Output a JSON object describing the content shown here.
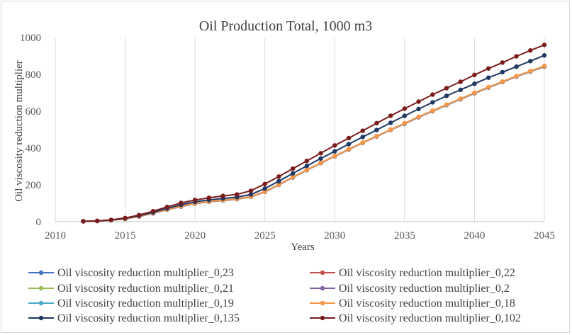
{
  "chart_data": {
    "type": "line",
    "title": "Oil Production Total, 1000 m3",
    "xlabel": "Years",
    "ylabel": "Oil viscosity reduction multiplier",
    "xlim": [
      2010,
      2045
    ],
    "ylim": [
      0,
      1000
    ],
    "xticks": [
      2010,
      2015,
      2020,
      2025,
      2030,
      2035,
      2040,
      2045
    ],
    "yticks": [
      0,
      200,
      400,
      600,
      800,
      1000
    ],
    "grid": "vertical",
    "legend_position": "bottom",
    "x": [
      2012,
      2013,
      2014,
      2015,
      2016,
      2017,
      2018,
      2019,
      2020,
      2021,
      2022,
      2023,
      2024,
      2025,
      2026,
      2027,
      2028,
      2029,
      2030,
      2031,
      2032,
      2033,
      2034,
      2035,
      2036,
      2037,
      2038,
      2039,
      2040,
      2041,
      2042,
      2043,
      2044,
      2045
    ],
    "series": [
      {
        "name": "Oil viscosity reduction multiplier_0,23",
        "color": "#4472c4",
        "values": [
          2,
          4,
          8,
          15,
          28,
          45,
          65,
          82,
          98,
          108,
          115,
          122,
          135,
          162,
          200,
          240,
          280,
          318,
          355,
          392,
          428,
          463,
          498,
          532,
          567,
          600,
          633,
          665,
          697,
          728,
          758,
          788,
          815,
          843
        ]
      },
      {
        "name": "Oil viscosity reduction multiplier_0,22",
        "color": "#c0504d",
        "values": [
          2,
          4,
          8,
          15,
          28,
          45,
          65,
          82,
          98,
          108,
          115,
          122,
          135,
          162,
          200,
          240,
          280,
          318,
          355,
          392,
          428,
          463,
          498,
          532,
          567,
          600,
          633,
          665,
          697,
          728,
          758,
          788,
          815,
          842
        ]
      },
      {
        "name": "Oil viscosity reduction multiplier_0,21",
        "color": "#9bbb59",
        "values": [
          2,
          4,
          8,
          16,
          29,
          46,
          66,
          83,
          99,
          109,
          116,
          123,
          136,
          163,
          201,
          241,
          281,
          319,
          356,
          393,
          429,
          464,
          499,
          533,
          568,
          601,
          634,
          666,
          698,
          729,
          759,
          789,
          816,
          844
        ]
      },
      {
        "name": "Oil viscosity reduction multiplier_0,2",
        "color": "#8064a2",
        "values": [
          2,
          4,
          8,
          16,
          29,
          46,
          66,
          83,
          99,
          109,
          116,
          123,
          136,
          163,
          201,
          241,
          281,
          319,
          356,
          393,
          429,
          464,
          499,
          533,
          568,
          601,
          634,
          666,
          698,
          729,
          759,
          789,
          816,
          844
        ]
      },
      {
        "name": "Oil viscosity reduction multiplier_0,19",
        "color": "#4bacc6",
        "values": [
          2,
          4,
          8,
          16,
          29,
          46,
          66,
          84,
          100,
          110,
          117,
          124,
          137,
          164,
          202,
          242,
          282,
          320,
          357,
          394,
          430,
          465,
          500,
          534,
          569,
          602,
          635,
          667,
          699,
          730,
          760,
          790,
          817,
          845
        ]
      },
      {
        "name": "Oil viscosity reduction multiplier_0,18",
        "color": "#f79646",
        "values": [
          2,
          4,
          8,
          16,
          29,
          47,
          67,
          84,
          100,
          110,
          117,
          124,
          137,
          164,
          202,
          242,
          282,
          320,
          357,
          394,
          430,
          465,
          500,
          535,
          570,
          603,
          636,
          668,
          700,
          731,
          761,
          791,
          818,
          846
        ]
      },
      {
        "name": "Oil viscosity reduction multiplier_0,135",
        "color": "#1f3864",
        "values": [
          2,
          4,
          9,
          18,
          32,
          51,
          72,
          92,
          108,
          118,
          126,
          133,
          148,
          180,
          220,
          262,
          303,
          343,
          382,
          421,
          460,
          498,
          537,
          575,
          612,
          648,
          683,
          716,
          749,
          782,
          812,
          842,
          872,
          903
        ]
      },
      {
        "name": "Oil viscosity reduction multiplier_0,102",
        "color": "#7b1c1c",
        "values": [
          2,
          4,
          10,
          20,
          36,
          57,
          80,
          102,
          118,
          130,
          140,
          148,
          168,
          205,
          245,
          288,
          330,
          372,
          414,
          454,
          494,
          535,
          575,
          614,
          652,
          690,
          725,
          760,
          797,
          832,
          864,
          898,
          930,
          960
        ]
      }
    ]
  }
}
